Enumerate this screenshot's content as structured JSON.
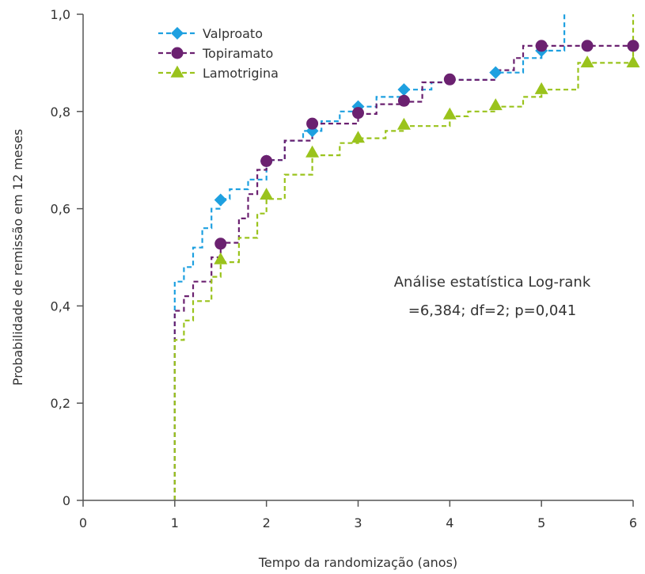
{
  "chart_data": {
    "type": "line",
    "xlabel": "Tempo da randomização (anos)",
    "ylabel": "Probabilidade de remissão em 12 meses",
    "xlim": [
      0,
      6
    ],
    "ylim": [
      0,
      1.0
    ],
    "x_ticks": [
      0,
      1,
      2,
      3,
      4,
      5,
      6
    ],
    "x_tick_labels": [
      "0",
      "1",
      "2",
      "3",
      "4",
      "5",
      "6"
    ],
    "y_ticks": [
      0,
      0.2,
      0.4,
      0.6,
      0.8,
      1.0
    ],
    "y_tick_labels": [
      "0",
      "0,2",
      "0,4",
      "0,6",
      "0,8",
      "1,0"
    ],
    "grid": false,
    "legend_position": "top-left",
    "annotation": [
      "Análise estatística Log-rank",
      "=6,384; df=2; p=0,041"
    ],
    "series": [
      {
        "name": "Valproato",
        "color": "#1ea0e0",
        "marker": "diamond",
        "points": [
          [
            1.0,
            0.0
          ],
          [
            1.0,
            0.45
          ],
          [
            1.1,
            0.48
          ],
          [
            1.2,
            0.52
          ],
          [
            1.3,
            0.56
          ],
          [
            1.4,
            0.6
          ],
          [
            1.5,
            0.62
          ],
          [
            1.6,
            0.64
          ],
          [
            1.8,
            0.66
          ],
          [
            2.0,
            0.7
          ],
          [
            2.2,
            0.74
          ],
          [
            2.4,
            0.76
          ],
          [
            2.6,
            0.78
          ],
          [
            2.8,
            0.8
          ],
          [
            3.0,
            0.81
          ],
          [
            3.2,
            0.83
          ],
          [
            3.5,
            0.845
          ],
          [
            3.8,
            0.86
          ],
          [
            4.0,
            0.865
          ],
          [
            4.5,
            0.88
          ],
          [
            4.8,
            0.91
          ],
          [
            5.0,
            0.925
          ],
          [
            5.25,
            0.935
          ],
          [
            5.25,
            1.0
          ]
        ],
        "marker_points": [
          [
            1.5,
            0.618
          ],
          [
            2.0,
            0.698
          ],
          [
            2.5,
            0.76
          ],
          [
            3.0,
            0.81
          ],
          [
            3.5,
            0.845
          ],
          [
            4.5,
            0.88
          ],
          [
            5.0,
            0.925
          ]
        ]
      },
      {
        "name": "Topiramato",
        "color": "#6b2170",
        "marker": "circle",
        "points": [
          [
            1.0,
            0.0
          ],
          [
            1.0,
            0.39
          ],
          [
            1.1,
            0.42
          ],
          [
            1.2,
            0.45
          ],
          [
            1.4,
            0.5
          ],
          [
            1.5,
            0.53
          ],
          [
            1.7,
            0.58
          ],
          [
            1.8,
            0.63
          ],
          [
            1.9,
            0.68
          ],
          [
            2.0,
            0.7
          ],
          [
            2.2,
            0.74
          ],
          [
            2.5,
            0.775
          ],
          [
            3.0,
            0.795
          ],
          [
            3.2,
            0.815
          ],
          [
            3.5,
            0.82
          ],
          [
            3.7,
            0.86
          ],
          [
            4.0,
            0.865
          ],
          [
            4.5,
            0.885
          ],
          [
            4.7,
            0.91
          ],
          [
            4.8,
            0.935
          ],
          [
            5.0,
            0.935
          ],
          [
            6.0,
            0.935
          ]
        ],
        "marker_points": [
          [
            1.5,
            0.528
          ],
          [
            2.0,
            0.698
          ],
          [
            2.5,
            0.775
          ],
          [
            3.0,
            0.797
          ],
          [
            3.5,
            0.822
          ],
          [
            4.0,
            0.866
          ],
          [
            5.0,
            0.935
          ],
          [
            5.5,
            0.935
          ],
          [
            6.0,
            0.935
          ]
        ]
      },
      {
        "name": "Lamotrigina",
        "color": "#9ac31c",
        "marker": "triangle",
        "points": [
          [
            1.0,
            0.0
          ],
          [
            1.0,
            0.33
          ],
          [
            1.1,
            0.37
          ],
          [
            1.2,
            0.41
          ],
          [
            1.4,
            0.46
          ],
          [
            1.5,
            0.49
          ],
          [
            1.7,
            0.54
          ],
          [
            1.9,
            0.59
          ],
          [
            2.0,
            0.62
          ],
          [
            2.2,
            0.67
          ],
          [
            2.5,
            0.71
          ],
          [
            2.8,
            0.735
          ],
          [
            3.0,
            0.745
          ],
          [
            3.3,
            0.76
          ],
          [
            3.5,
            0.77
          ],
          [
            4.0,
            0.79
          ],
          [
            4.2,
            0.8
          ],
          [
            4.5,
            0.81
          ],
          [
            4.8,
            0.83
          ],
          [
            5.0,
            0.845
          ],
          [
            5.4,
            0.845
          ],
          [
            5.4,
            0.9
          ],
          [
            6.0,
            0.9
          ],
          [
            6.0,
            1.0
          ]
        ],
        "marker_points": [
          [
            1.5,
            0.495
          ],
          [
            2.0,
            0.628
          ],
          [
            2.5,
            0.715
          ],
          [
            3.0,
            0.745
          ],
          [
            3.5,
            0.772
          ],
          [
            4.0,
            0.793
          ],
          [
            4.5,
            0.812
          ],
          [
            5.0,
            0.845
          ],
          [
            5.5,
            0.9
          ],
          [
            6.0,
            0.9
          ]
        ]
      }
    ]
  }
}
